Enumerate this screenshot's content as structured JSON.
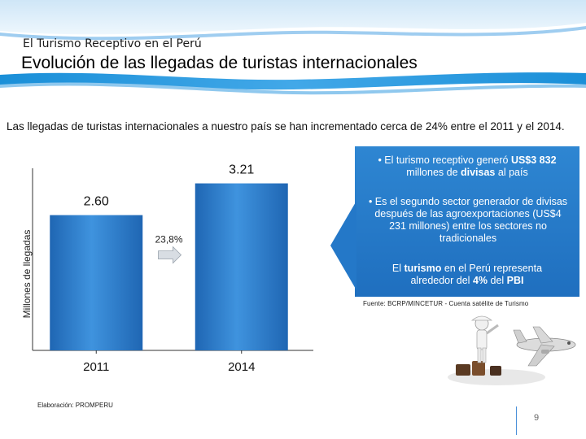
{
  "header": {
    "kicker": "El Turismo Receptivo en el Perú",
    "title": "Evolución de las llegadas de turistas internacionales"
  },
  "intro": "Las llegadas de turistas internacionales a nuestro país se han incrementado cerca de 24% entre el 2011 y el 2014.",
  "chart_data": {
    "type": "bar",
    "categories": [
      "2011",
      "2014"
    ],
    "values": [
      2.6,
      3.21
    ],
    "value_labels": [
      "2.60",
      "3.21"
    ],
    "growth_label": "23,8%",
    "title": "",
    "xlabel": "",
    "ylabel": "Millones de llegadas",
    "ylim": [
      0,
      3.5
    ],
    "color": "#2e7fce"
  },
  "panel": {
    "bullet1_pre": "• El turismo receptivo generó ",
    "bullet1_bold": "US$3 832",
    "bullet1_mid": "millones de ",
    "bullet1_bold2": "divisas",
    "bullet1_post": " al país",
    "bullet2": "• Es  el segundo sector  generador de divisas después de las agroexportaciones (US$4 231 millones) entre los sectores no tradicionales",
    "bullet3_pre": "El ",
    "bullet3_bold": "turismo",
    "bullet3_mid": " en el Perú representa alrededor del ",
    "bullet3_bold2": "4%",
    "bullet3_mid2": "  del ",
    "bullet3_bold3": "PBI",
    "color": "#2478c8"
  },
  "footer": {
    "fuente": "Fuente: BCRP/MINCETUR - Cuenta satélite de Turismo",
    "elaboracion": "Elaboración: PROMPERU",
    "page_number": "9"
  }
}
